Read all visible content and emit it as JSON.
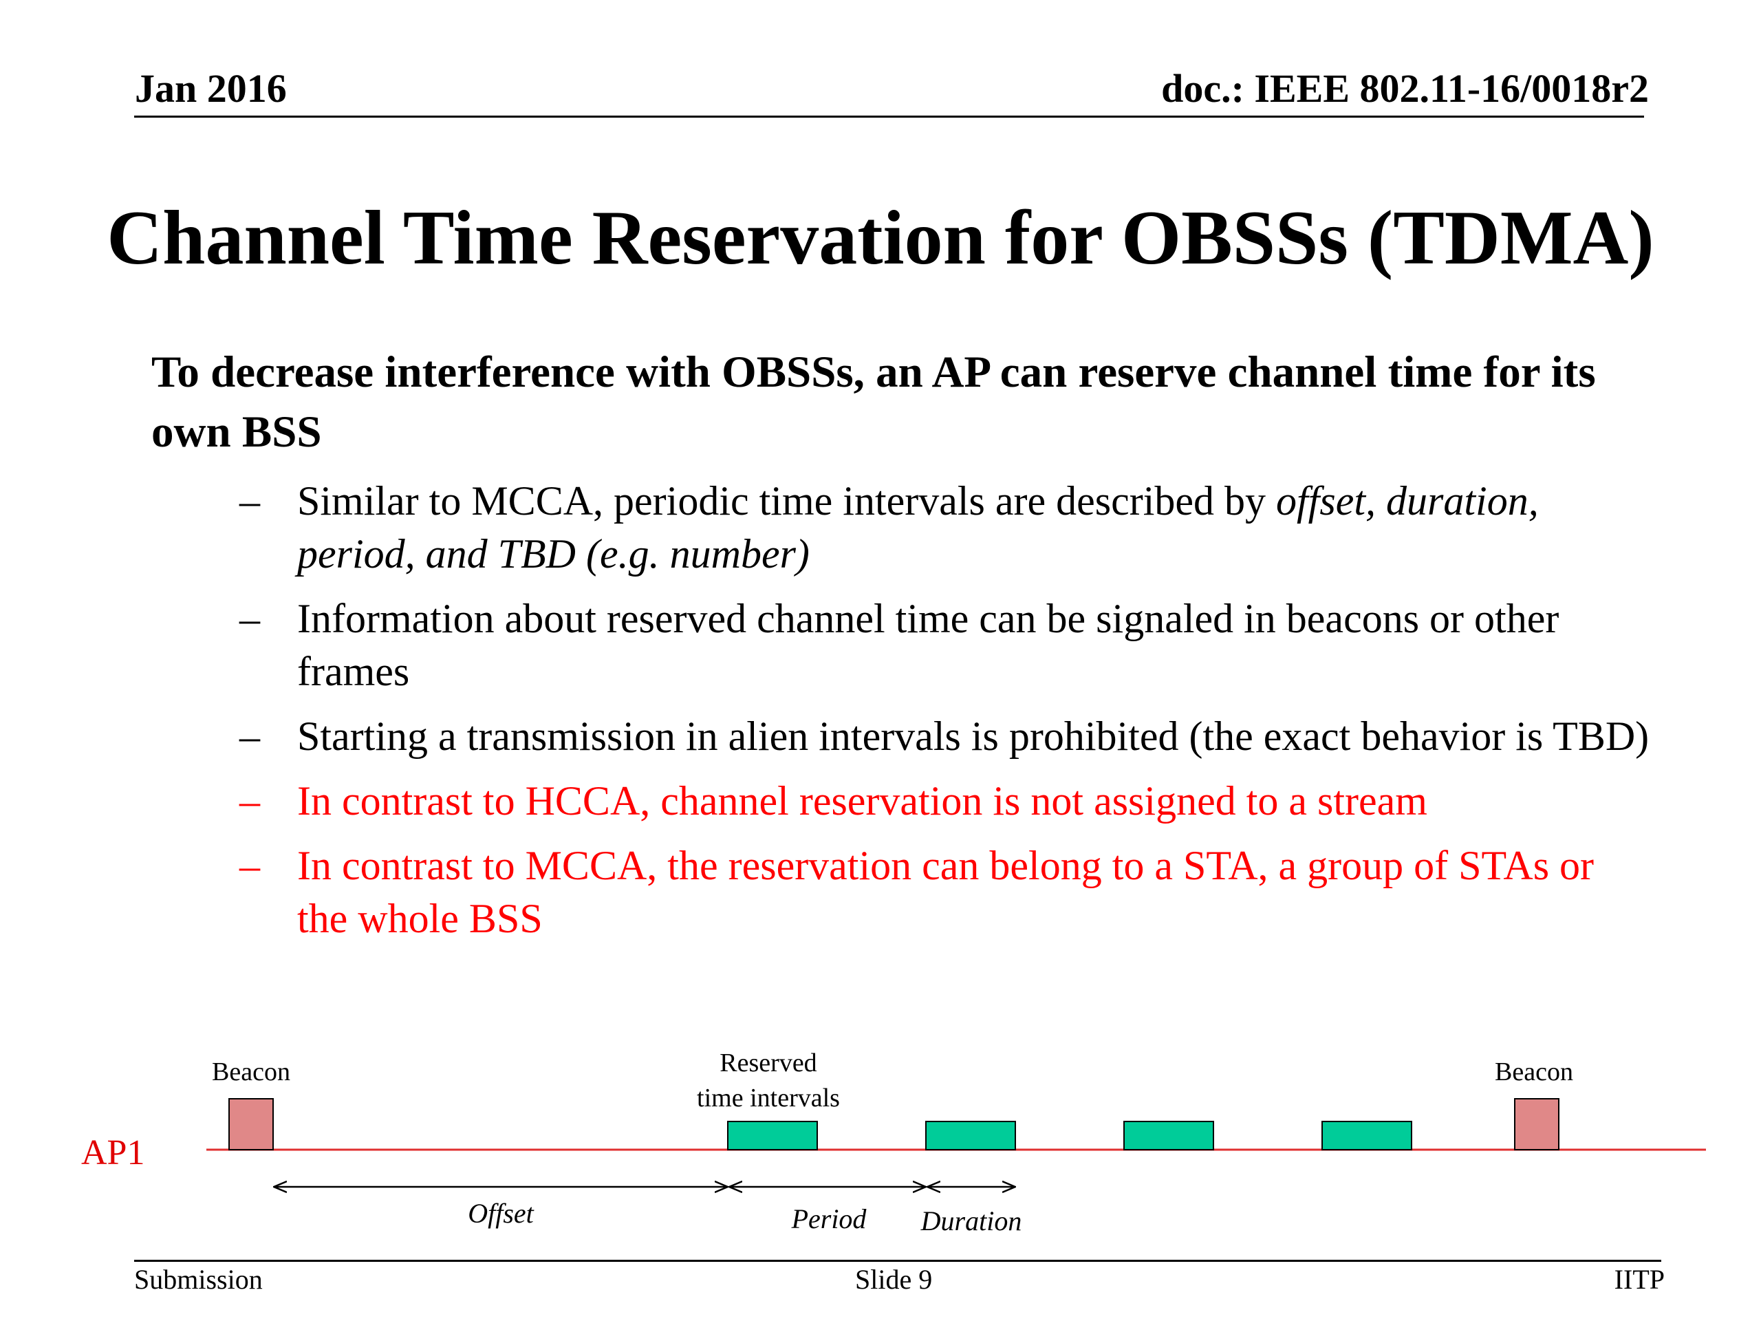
{
  "header": {
    "date": "Jan 2016",
    "doc_id": "doc.: IEEE 802.11-16/0018r2"
  },
  "title": "Channel Time Reservation for OBSSs (TDMA)",
  "main_bullet": "To decrease interference with OBSSs, an AP can reserve channel time for its own BSS",
  "sub_bullets": [
    {
      "dash": "–",
      "text": "Similar to MCCA, periodic time intervals  are described by ",
      "italic": "offset, duration, period, and TBD (e.g. number)",
      "color": "#000000"
    },
    {
      "dash": "–",
      "text": "Information about reserved channel time can be signaled in beacons or other frames",
      "italic": "",
      "color": "#000000"
    },
    {
      "dash": "–",
      "text": "Starting a transmission in alien intervals is prohibited (the exact behavior is TBD)",
      "italic": "",
      "color": "#000000"
    },
    {
      "dash": "–",
      "text": "In contrast to HCCA, channel reservation is not assigned to a stream",
      "italic": "",
      "color": "#ff0000"
    },
    {
      "dash": "–",
      "text": "In contrast to MCCA, the reservation can belong to a STA, a group of STAs or the whole BSS",
      "italic": "",
      "color": "#ff0000"
    }
  ],
  "diagram": {
    "ap_label": "AP1",
    "beacon_left_label": "Beacon",
    "beacon_right_label": "Beacon",
    "reserved_label_line1": "Reserved",
    "reserved_label_line2": "time intervals",
    "offset_label": "Offset",
    "period_label": "Period",
    "duration_label": "Duration",
    "reserved_interval_count": 4,
    "colors": {
      "timeline": "#e03030",
      "ap_label": "#e00000",
      "beacon_fill": "#e08888",
      "reserved_fill": "#00cc99"
    }
  },
  "footer": {
    "left": "Submission",
    "center": "Slide 9",
    "right": "IITP"
  }
}
